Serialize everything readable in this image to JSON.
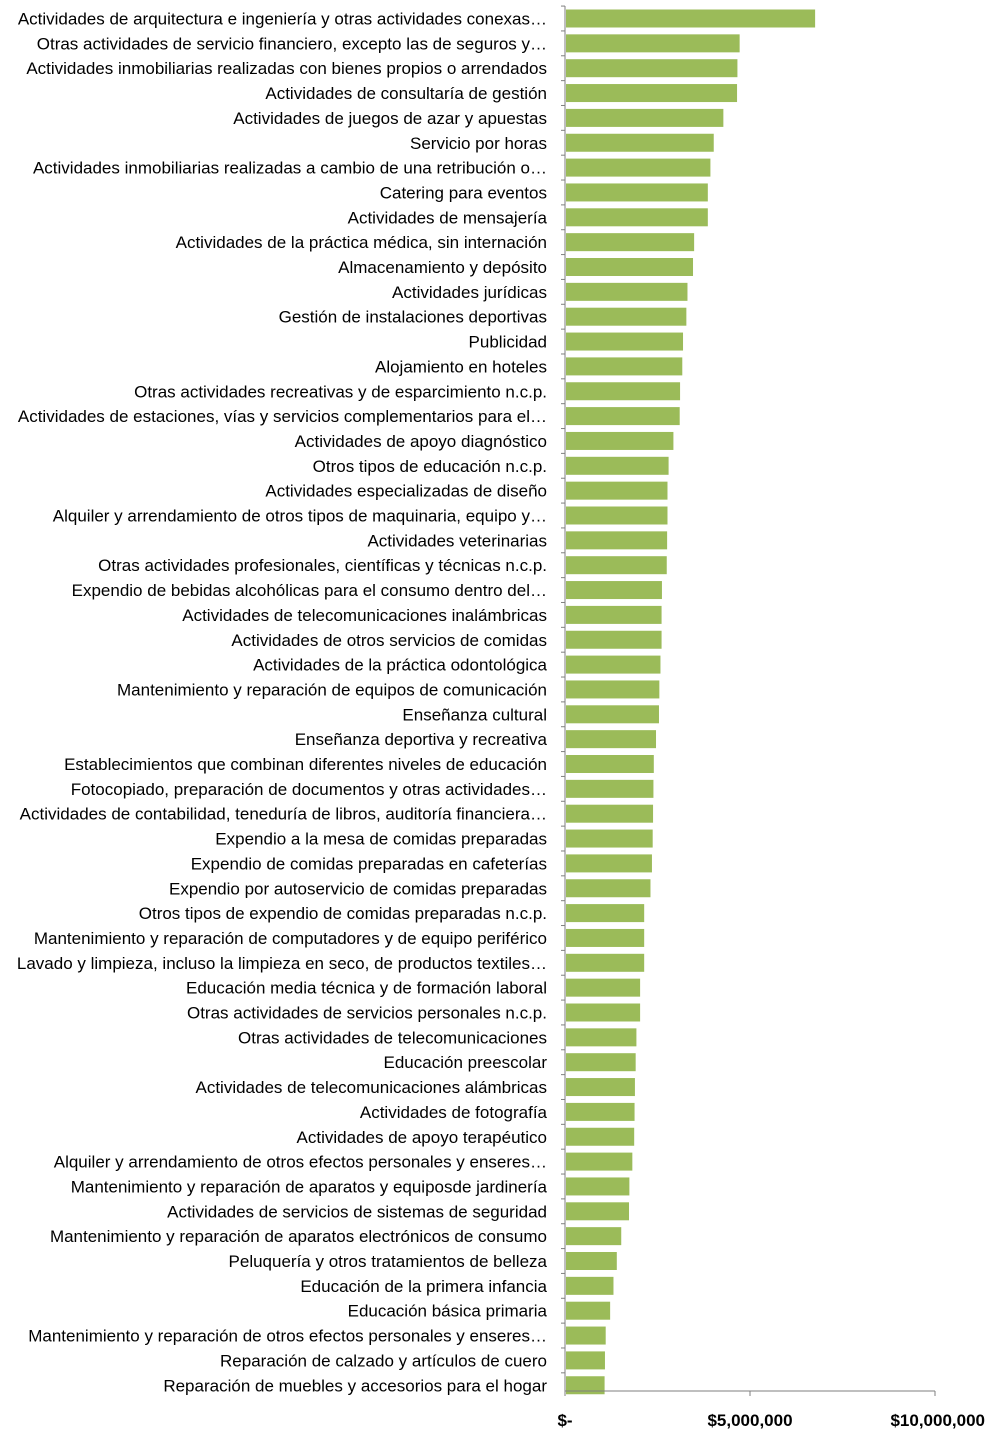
{
  "chart_data": {
    "type": "bar",
    "orientation": "horizontal",
    "title": "",
    "xlabel": "",
    "ylabel": "",
    "xlim": [
      0,
      10000000
    ],
    "grid": false,
    "legend": "none",
    "bar_color": "#9bbb59",
    "categories": [
      "Actividades de arquitectura e ingeniería y otras actividades conexas…",
      "Otras actividades de servicio financiero, excepto las de seguros y…",
      "Actividades inmobiliarias realizadas con bienes propios o arrendados",
      "Actividades de consultaría de gestión",
      "Actividades de juegos de azar y apuestas",
      "Servicio por horas",
      "Actividades inmobiliarias realizadas a cambio de una retribución o…",
      "Catering para eventos",
      "Actividades de mensajería",
      "Actividades de la práctica médica, sin internación",
      "Almacenamiento y depósito",
      "Actividades jurídicas",
      "Gestión de instalaciones deportivas",
      "Publicidad",
      "Alojamiento en hoteles",
      "Otras actividades recreativas y de esparcimiento n.c.p.",
      "Actividades de estaciones, vías y servicios complementarios para el…",
      "Actividades de apoyo diagnóstico",
      "Otros tipos de educación n.c.p.",
      "Actividades especializadas de diseño",
      "Alquiler y arrendamiento de otros tipos de maquinaria, equipo y…",
      "Actividades veterinarias",
      "Otras actividades profesionales, científicas y técnicas n.c.p.",
      "Expendio de bebidas alcohólicas para el consumo dentro del…",
      "Actividades de telecomunicaciones inalámbricas",
      "Actividades de otros servicios de comidas",
      "Actividades de la práctica odontológica",
      "Mantenimiento y reparación de equipos de comunicación",
      "Enseñanza cultural",
      "Enseñanza deportiva y recreativa",
      "Establecimientos que combinan diferentes niveles de educación",
      "Fotocopiado, preparación de documentos y otras actividades…",
      "Actividades de contabilidad, teneduría de libros, auditoría financiera…",
      "Expendio a la mesa de comidas preparadas",
      "Expendio de comidas preparadas en cafeterías",
      "Expendio por autoservicio de comidas preparadas",
      "Otros tipos de expendio de comidas preparadas n.c.p.",
      "Mantenimiento y reparación de computadores y de equipo periférico",
      "Lavado y limpieza, incluso la limpieza en seco, de productos textiles…",
      "Educación media técnica y de formación laboral",
      "Otras actividades de servicios personales n.c.p.",
      "Otras actividades de telecomunicaciones",
      "Educación preescolar",
      "Actividades de telecomunicaciones alámbricas",
      "Actividades de fotografía",
      "Actividades de apoyo terapéutico",
      "Alquiler y arrendamiento de otros efectos personales y enseres…",
      "Mantenimiento y reparación de aparatos y equiposde jardinería",
      "Actividades de servicios de sistemas de seguridad",
      "Mantenimiento y reparación de aparatos electrónicos de consumo",
      "Peluquería y otros tratamientos de belleza",
      "Educación de la primera infancia",
      "Educación básica primaria",
      "Mantenimiento y reparación de otros efectos personales y enseres…",
      "Reparación de calzado y artículos de cuero",
      "Reparación de muebles y accesorios para el hogar"
    ],
    "values": [
      6760000,
      4720000,
      4660000,
      4650000,
      4280000,
      4020000,
      3930000,
      3860000,
      3860000,
      3490000,
      3460000,
      3310000,
      3280000,
      3190000,
      3170000,
      3110000,
      3100000,
      2930000,
      2800000,
      2770000,
      2770000,
      2760000,
      2750000,
      2620000,
      2610000,
      2610000,
      2580000,
      2550000,
      2540000,
      2460000,
      2400000,
      2390000,
      2380000,
      2370000,
      2350000,
      2310000,
      2140000,
      2140000,
      2140000,
      2030000,
      2030000,
      1930000,
      1910000,
      1890000,
      1880000,
      1870000,
      1820000,
      1740000,
      1730000,
      1520000,
      1400000,
      1310000,
      1220000,
      1100000,
      1080000,
      1070000
    ],
    "x_ticks": [
      0,
      5000000,
      10000000
    ],
    "x_tick_labels": [
      "$-",
      "$5,000,000",
      "$10,000,000"
    ]
  }
}
